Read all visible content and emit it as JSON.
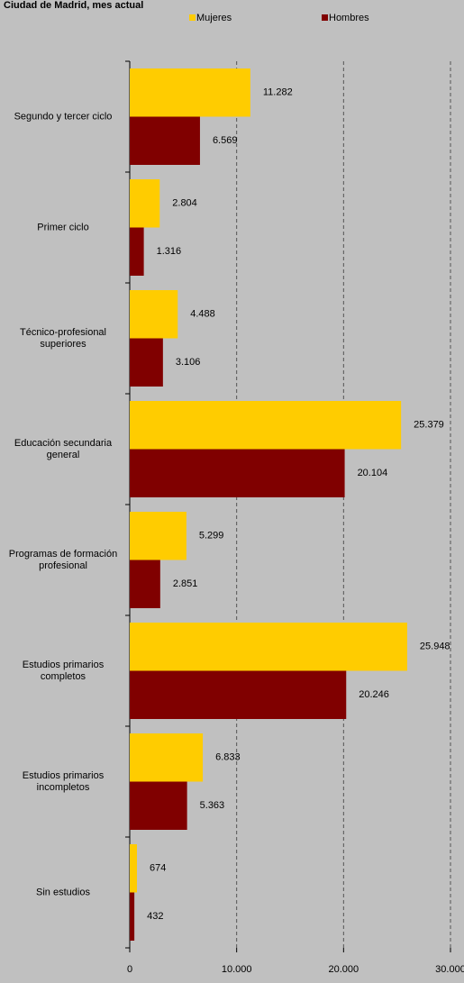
{
  "chart_data": {
    "type": "barh",
    "title": "Ciudad de Madrid, mes actual",
    "categories": [
      "Segundo y tercer ciclo",
      "Primer ciclo",
      "Técnico-profesional superiores",
      "Educación secundaria general",
      "Programas de formación profesional",
      "Estudios primarios completos",
      "Estudios primarios incompletos",
      "Sin estudios"
    ],
    "series": [
      {
        "name": "Mujeres",
        "color": "#ffcc00",
        "values": [
          11282,
          2804,
          4488,
          25379,
          5299,
          25948,
          6833,
          674
        ],
        "value_labels": [
          "11.282",
          "2.804",
          "4.488",
          "25.379",
          "5.299",
          "25.948",
          "6.833",
          "674"
        ]
      },
      {
        "name": "Hombres",
        "color": "#800000",
        "values": [
          6569,
          1316,
          3106,
          20104,
          2851,
          20246,
          5363,
          432
        ],
        "value_labels": [
          "6.569",
          "1.316",
          "3.106",
          "20.104",
          "2.851",
          "20.246",
          "5.363",
          "432"
        ]
      }
    ],
    "xlim": [
      0,
      30000
    ],
    "xticks": [
      0,
      {
        "value": 10000,
        "label": "10.000"
      },
      {
        "value": 20000,
        "label": "20.000"
      },
      {
        "value": 30000,
        "label": "30.000"
      }
    ],
    "grid": true,
    "legend": "top"
  }
}
